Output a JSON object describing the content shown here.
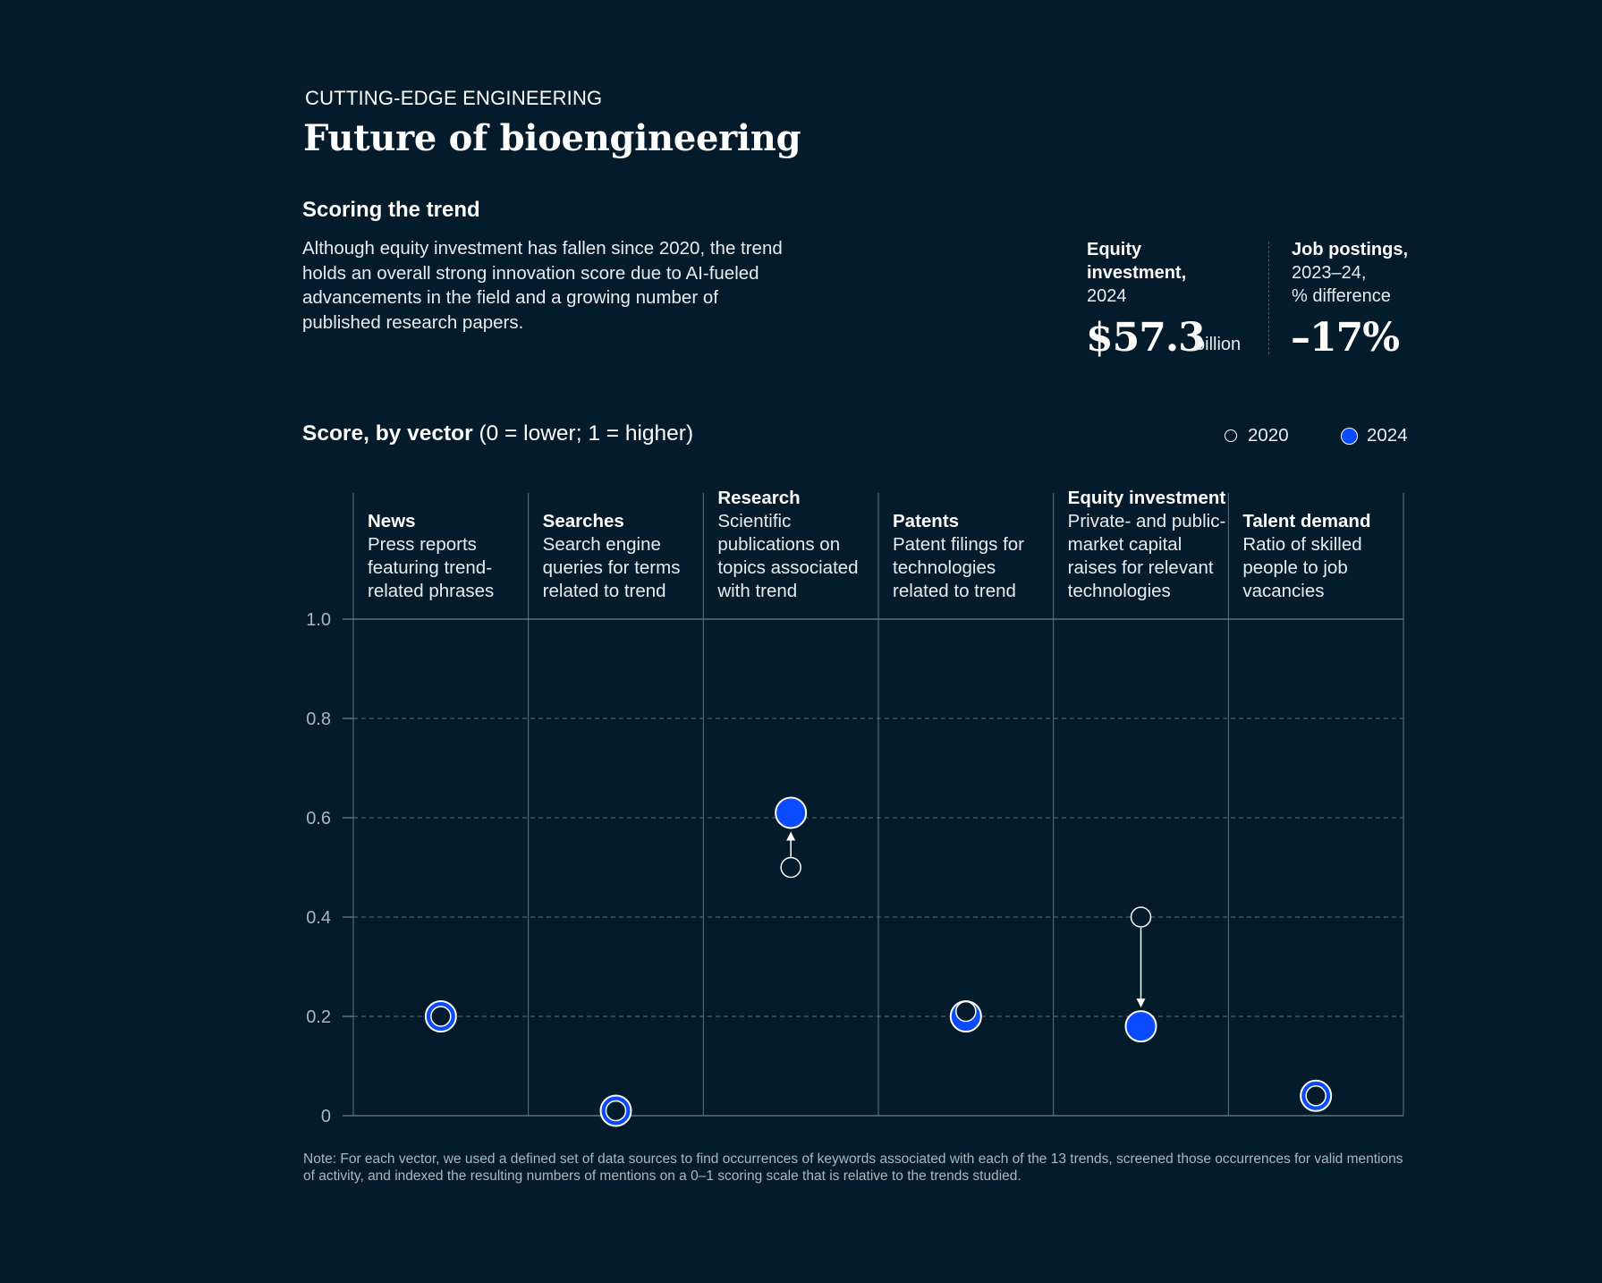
{
  "header": {
    "eyebrow": "CUTTING-EDGE ENGINEERING",
    "title": "Future of bioengineering",
    "subhead": "Scoring the trend",
    "description": "Although equity investment has fallen since 2020, the trend holds an overall strong innovation score due to AI-fueled advancements in the field and a growing number of published research papers."
  },
  "kpis": {
    "equity": {
      "label_bold_1": "Equity",
      "label_bold_2": "investment,",
      "label_sub": "2024",
      "value": "$57.3",
      "unit": "billion"
    },
    "jobs": {
      "label_bold": "Job postings,",
      "label_sub_1": "2023–24,",
      "label_sub_2": "% difference",
      "value": "–17%"
    }
  },
  "chart_heading": {
    "bold": "Score, by vector",
    "rest": " (0 = lower; 1 = higher)"
  },
  "legend": {
    "y2020": "2020",
    "y2024": "2024"
  },
  "note": "Note: For each vector, we used a defined set of data sources to find occurrences of keywords associated with each of the 13 trends, screened those occurrences for valid mentions of activity, and indexed the resulting numbers of mentions on a 0–1 scoring scale that is relative to the trends studied.",
  "colors": {
    "background": "#041b2b",
    "marker_2024": "#0b4bff",
    "gridline": "#5f7282"
  },
  "chart_data": {
    "type": "scatter",
    "ylim": [
      0,
      1
    ],
    "yticks": [
      "0",
      "0.2",
      "0.4",
      "0.6",
      "0.8",
      "1.0"
    ],
    "ytick_values": [
      0,
      0.2,
      0.4,
      0.6,
      0.8,
      1.0
    ],
    "categories": [
      {
        "name": "News",
        "desc": [
          "Press reports",
          "featuring trend-",
          "related phrases"
        ]
      },
      {
        "name": "Searches",
        "desc": [
          "Search engine",
          "queries for terms",
          "related to trend"
        ]
      },
      {
        "name": "Research",
        "desc": [
          "Scientific",
          "publications on",
          "topics associated",
          "with trend"
        ]
      },
      {
        "name": "Patents",
        "desc": [
          "Patent filings for",
          "technologies",
          "related to trend"
        ]
      },
      {
        "name": "Equity investment",
        "desc": [
          "Private- and public-",
          "market capital",
          "raises for relevant",
          "technologies"
        ]
      },
      {
        "name": "Talent demand",
        "desc": [
          "Ratio of skilled",
          "people to job",
          "vacancies"
        ]
      }
    ],
    "series": [
      {
        "name": "2020",
        "values": [
          0.2,
          0.01,
          0.5,
          0.21,
          0.4,
          0.04
        ]
      },
      {
        "name": "2024",
        "values": [
          0.2,
          0.01,
          0.61,
          0.2,
          0.18,
          0.04
        ]
      }
    ],
    "legend_position": "top-right",
    "grid": true
  }
}
